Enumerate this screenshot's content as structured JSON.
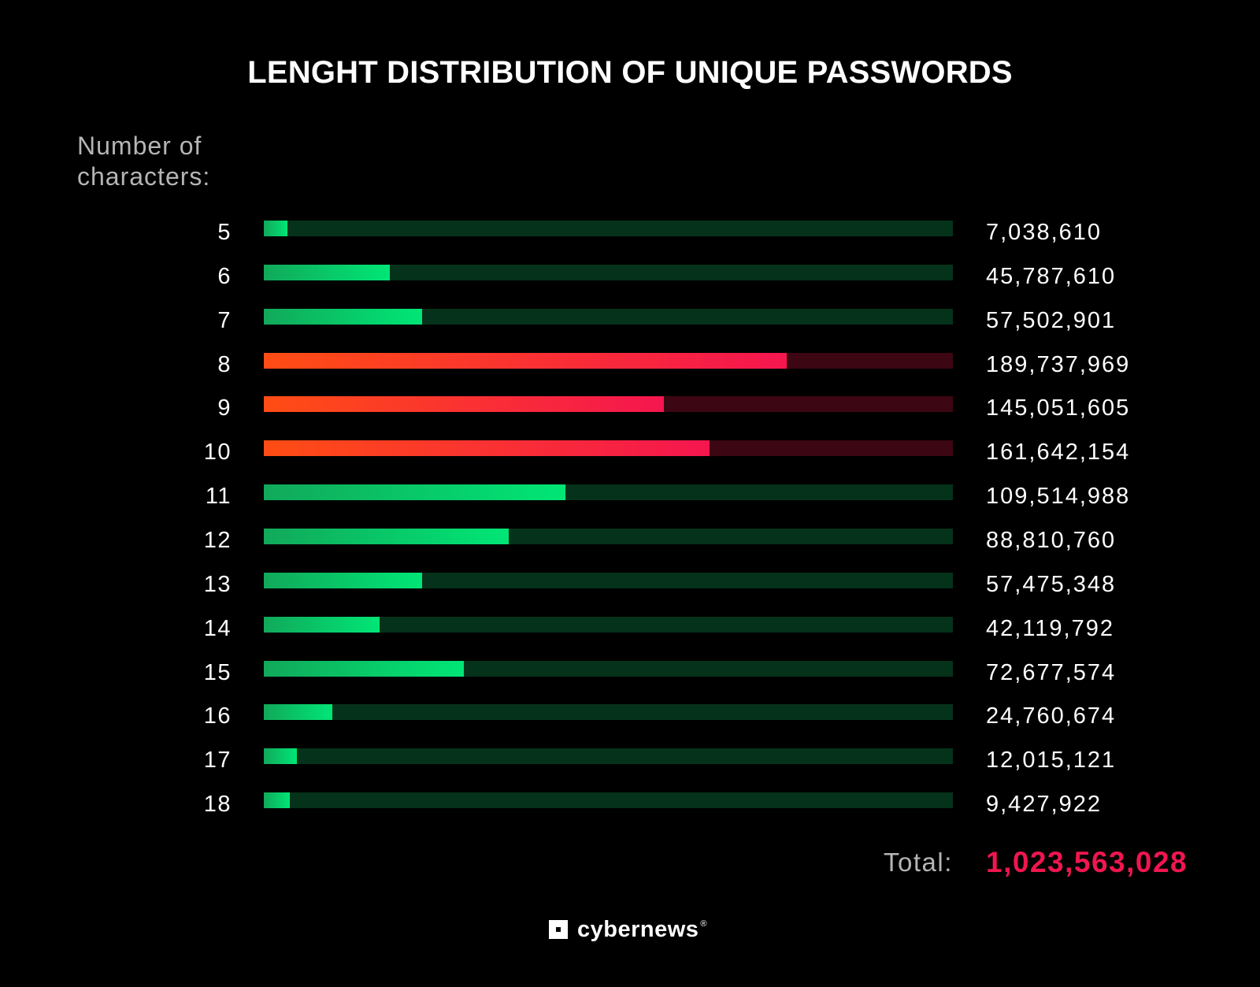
{
  "chart_data": {
    "type": "bar",
    "orientation": "horizontal",
    "title": "LENGHT DISTRIBUTION OF UNIQUE PASSWORDS",
    "ylabel": "Number of characters:",
    "categories": [
      "5",
      "6",
      "7",
      "8",
      "9",
      "10",
      "11",
      "12",
      "13",
      "14",
      "15",
      "16",
      "17",
      "18"
    ],
    "values": [
      7038610,
      45787610,
      57502901,
      189737969,
      145051605,
      161642154,
      109514988,
      88810760,
      57475348,
      42119792,
      72677574,
      24760674,
      12015121,
      9427922
    ],
    "value_labels": [
      "7,038,610",
      "45,787,610",
      "57,502,901",
      "189,737,969",
      "145,051,605",
      "161,642,154",
      "109,514,988",
      "88,810,760",
      "57,475,348",
      "42,119,792",
      "72,677,574",
      "24,760,674",
      "12,015,121",
      "9,427,922"
    ],
    "highlighted": [
      "8",
      "9",
      "10"
    ],
    "xlim": [
      0,
      250000000
    ],
    "grid": false,
    "total_label": "Total:",
    "total_value": "1,023,563,028"
  },
  "colors": {
    "background": "#000000",
    "normal_track": "#05321a",
    "normal_fill_start": "#11a95a",
    "normal_fill_end": "#00e676",
    "highlight_track": "#3c0612",
    "highlight_fill_start": "#ff4d14",
    "highlight_fill_end": "#f5164f",
    "total_value": "#f0164f",
    "muted_text": "#b5b5b5"
  },
  "brand": {
    "name": "cybernews",
    "reg_mark": "®",
    "icon": "cybernews-logo-icon"
  }
}
